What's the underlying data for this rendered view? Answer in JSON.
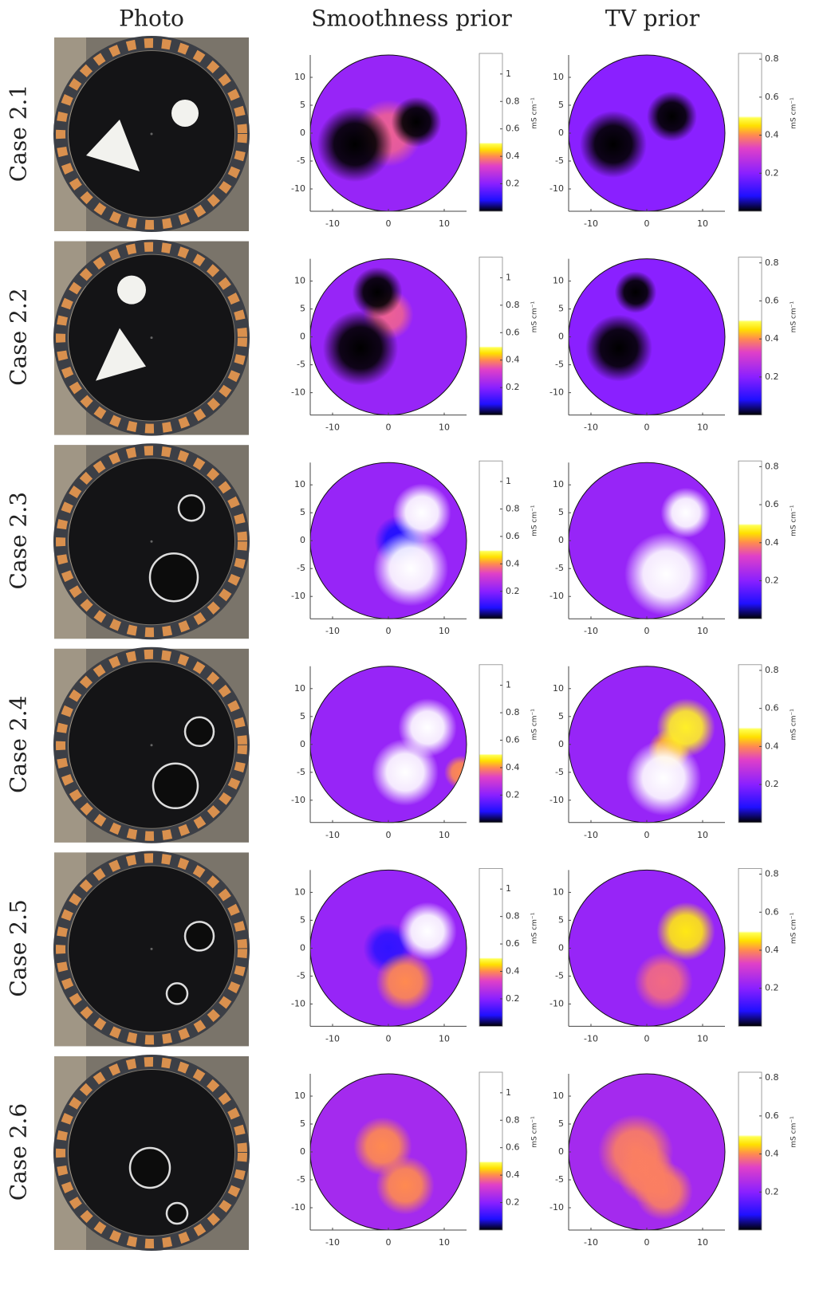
{
  "columns": [
    "Photo",
    "Smoothness prior",
    "TV prior"
  ],
  "rows": [
    "Case 2.1",
    "Case 2.2",
    "Case 2.3",
    "Case 2.4",
    "Case 2.5",
    "Case 2.6"
  ],
  "colormap": [
    {
      "value": 0,
      "color": "#000000"
    },
    {
      "value": 0.08,
      "color": "#1f10ff"
    },
    {
      "value": 0.2,
      "color": "#8a20ff"
    },
    {
      "value": 0.33,
      "color": "#e040c8"
    },
    {
      "value": 0.4,
      "color": "#ff8a50"
    },
    {
      "value": 0.45,
      "color": "#ffe000"
    },
    {
      "value": 0.49,
      "color": "#ffff50"
    },
    {
      "value": 0.5,
      "color": "#ffffff"
    }
  ],
  "chart_data": [
    {
      "type": "heatmap",
      "xlim": [
        -14,
        14
      ],
      "ylim": [
        -14,
        14
      ],
      "xticks": [
        -10,
        0,
        10
      ],
      "yticks": [
        -10,
        -5,
        0,
        5,
        10
      ],
      "clim": [
        0,
        1.15
      ],
      "cticks": [
        0.2,
        0.4,
        0.6,
        0.8,
        1
      ],
      "colorbar_label": "mS cm⁻¹",
      "background": 0.22,
      "blobs": [
        {
          "x": 0,
          "y": 0,
          "r": 4,
          "value": 0.36
        },
        {
          "x": -6,
          "y": -2,
          "r": 4.5,
          "value": 0
        },
        {
          "x": 5,
          "y": 2,
          "r": 3,
          "value": 0
        }
      ]
    },
    {
      "type": "heatmap",
      "xlim": [
        -14,
        14
      ],
      "ylim": [
        -14,
        14
      ],
      "xticks": [
        -10,
        0,
        10
      ],
      "yticks": [
        -10,
        -5,
        0,
        5,
        10
      ],
      "clim": [
        0,
        0.83
      ],
      "cticks": [
        0.2,
        0.4,
        0.6,
        0.8
      ],
      "colorbar_label": "mS cm⁻¹",
      "background": 0.2,
      "blobs": [
        {
          "x": -6,
          "y": -2,
          "r": 4,
          "value": 0
        },
        {
          "x": 4.5,
          "y": 3,
          "r": 3,
          "value": 0
        }
      ]
    },
    {
      "type": "heatmap",
      "xlim": [
        -14,
        14
      ],
      "ylim": [
        -14,
        14
      ],
      "xticks": [
        -10,
        0,
        10
      ],
      "yticks": [
        -10,
        -5,
        0,
        5,
        10
      ],
      "clim": [
        0,
        1.15
      ],
      "cticks": [
        0.2,
        0.4,
        0.6,
        0.8,
        1
      ],
      "colorbar_label": "mS cm⁻¹",
      "background": 0.22,
      "blobs": [
        {
          "x": 0,
          "y": 4,
          "r": 3,
          "value": 0.36
        },
        {
          "x": -5,
          "y": -2,
          "r": 4.5,
          "value": 0
        },
        {
          "x": -2,
          "y": 8,
          "r": 3,
          "value": 0
        }
      ]
    },
    {
      "type": "heatmap",
      "xlim": [
        -14,
        14
      ],
      "ylim": [
        -14,
        14
      ],
      "xticks": [
        -10,
        0,
        10
      ],
      "yticks": [
        -10,
        -5,
        0,
        5,
        10
      ],
      "clim": [
        0,
        0.83
      ],
      "cticks": [
        0.2,
        0.4,
        0.6,
        0.8
      ],
      "colorbar_label": "mS cm⁻¹",
      "background": 0.2,
      "blobs": [
        {
          "x": -5,
          "y": -2,
          "r": 4,
          "value": 0
        },
        {
          "x": -2,
          "y": 8,
          "r": 2.5,
          "value": 0
        }
      ]
    },
    {
      "type": "heatmap",
      "xlim": [
        -14,
        14
      ],
      "ylim": [
        -14,
        14
      ],
      "xticks": [
        -10,
        0,
        10
      ],
      "yticks": [
        -10,
        -5,
        0,
        5,
        10
      ],
      "clim": [
        0,
        1.15
      ],
      "cticks": [
        0.2,
        0.4,
        0.6,
        0.8,
        1
      ],
      "colorbar_label": "mS cm⁻¹",
      "background": 0.22,
      "blobs": [
        {
          "x": 2,
          "y": 0,
          "r": 3,
          "value": 0.08
        },
        {
          "x": 4,
          "y": -5,
          "r": 4.5,
          "value": 1.1
        },
        {
          "x": 6,
          "y": 5,
          "r": 3.5,
          "value": 0.8
        }
      ]
    },
    {
      "type": "heatmap",
      "xlim": [
        -14,
        14
      ],
      "ylim": [
        -14,
        14
      ],
      "xticks": [
        -10,
        0,
        10
      ],
      "yticks": [
        -10,
        -5,
        0,
        5,
        10
      ],
      "clim": [
        0,
        0.83
      ],
      "cticks": [
        0.2,
        0.4,
        0.6,
        0.8
      ],
      "colorbar_label": "mS cm⁻¹",
      "background": 0.22,
      "blobs": [
        {
          "x": 3.5,
          "y": -6,
          "r": 5,
          "value": 0.8
        },
        {
          "x": 7,
          "y": 5,
          "r": 3,
          "value": 0.7
        }
      ]
    },
    {
      "type": "heatmap",
      "xlim": [
        -14,
        14
      ],
      "ylim": [
        -14,
        14
      ],
      "xticks": [
        -10,
        0,
        10
      ],
      "yticks": [
        -10,
        -5,
        0,
        5,
        10
      ],
      "clim": [
        0,
        1.15
      ],
      "cticks": [
        0.2,
        0.4,
        0.6,
        0.8,
        1
      ],
      "colorbar_label": "mS cm⁻¹",
      "background": 0.22,
      "blobs": [
        {
          "x": 3,
          "y": -5,
          "r": 4,
          "value": 1.1
        },
        {
          "x": 7,
          "y": 3,
          "r": 3.5,
          "value": 0.8
        },
        {
          "x": 13,
          "y": -5,
          "r": 2,
          "value": 0.4
        }
      ]
    },
    {
      "type": "heatmap",
      "xlim": [
        -14,
        14
      ],
      "ylim": [
        -14,
        14
      ],
      "xticks": [
        -10,
        0,
        10
      ],
      "yticks": [
        -10,
        -5,
        0,
        5,
        10
      ],
      "clim": [
        0,
        0.83
      ],
      "cticks": [
        0.2,
        0.4,
        0.6,
        0.8
      ],
      "colorbar_label": "mS cm⁻¹",
      "background": 0.22,
      "blobs": [
        {
          "x": 4,
          "y": -1,
          "r": 2.5,
          "value": 0.42
        },
        {
          "x": 3,
          "y": -6,
          "r": 4.5,
          "value": 0.8
        },
        {
          "x": 7,
          "y": 3,
          "r": 3.5,
          "value": 0.47
        }
      ]
    },
    {
      "type": "heatmap",
      "xlim": [
        -14,
        14
      ],
      "ylim": [
        -14,
        14
      ],
      "xticks": [
        -10,
        0,
        10
      ],
      "yticks": [
        -10,
        -5,
        0,
        5,
        10
      ],
      "clim": [
        0,
        1.15
      ],
      "cticks": [
        0.2,
        0.4,
        0.6,
        0.8,
        1
      ],
      "colorbar_label": "mS cm⁻¹",
      "background": 0.22,
      "blobs": [
        {
          "x": 0,
          "y": 0,
          "r": 3,
          "value": 0.1
        },
        {
          "x": 7,
          "y": 3,
          "r": 3.5,
          "value": 0.6
        },
        {
          "x": 3,
          "y": -6,
          "r": 3.5,
          "value": 0.4
        }
      ]
    },
    {
      "type": "heatmap",
      "xlim": [
        -14,
        14
      ],
      "ylim": [
        -14,
        14
      ],
      "xticks": [
        -10,
        0,
        10
      ],
      "yticks": [
        -10,
        -5,
        0,
        5,
        10
      ],
      "clim": [
        0,
        0.83
      ],
      "cticks": [
        0.2,
        0.4,
        0.6,
        0.8
      ],
      "colorbar_label": "mS cm⁻¹",
      "background": 0.22,
      "blobs": [
        {
          "x": 7,
          "y": 3,
          "r": 3.5,
          "value": 0.46
        },
        {
          "x": 3,
          "y": -6,
          "r": 3.5,
          "value": 0.37
        }
      ]
    },
    {
      "type": "heatmap",
      "xlim": [
        -14,
        14
      ],
      "ylim": [
        -14,
        14
      ],
      "xticks": [
        -10,
        0,
        10
      ],
      "yticks": [
        -10,
        -5,
        0,
        5,
        10
      ],
      "clim": [
        0,
        1.15
      ],
      "cticks": [
        0.2,
        0.4,
        0.6,
        0.8,
        1
      ],
      "colorbar_label": "mS cm⁻¹",
      "background": 0.24,
      "blobs": [
        {
          "x": -1,
          "y": 1,
          "r": 3.5,
          "value": 0.4
        },
        {
          "x": 3,
          "y": -6,
          "r": 3.5,
          "value": 0.4
        }
      ]
    },
    {
      "type": "heatmap",
      "xlim": [
        -14,
        14
      ],
      "ylim": [
        -14,
        14
      ],
      "xticks": [
        -10,
        0,
        10
      ],
      "yticks": [
        -10,
        -5,
        0,
        5,
        10
      ],
      "clim": [
        0,
        0.83
      ],
      "cticks": [
        0.2,
        0.4,
        0.6,
        0.8
      ],
      "colorbar_label": "mS cm⁻¹",
      "background": 0.24,
      "blobs": [
        {
          "x": -2,
          "y": 0,
          "r": 4.5,
          "value": 0.39
        },
        {
          "x": 0,
          "y": -4,
          "r": 3.5,
          "value": 0.39
        },
        {
          "x": 3,
          "y": -7,
          "r": 3.5,
          "value": 0.39
        }
      ]
    }
  ]
}
